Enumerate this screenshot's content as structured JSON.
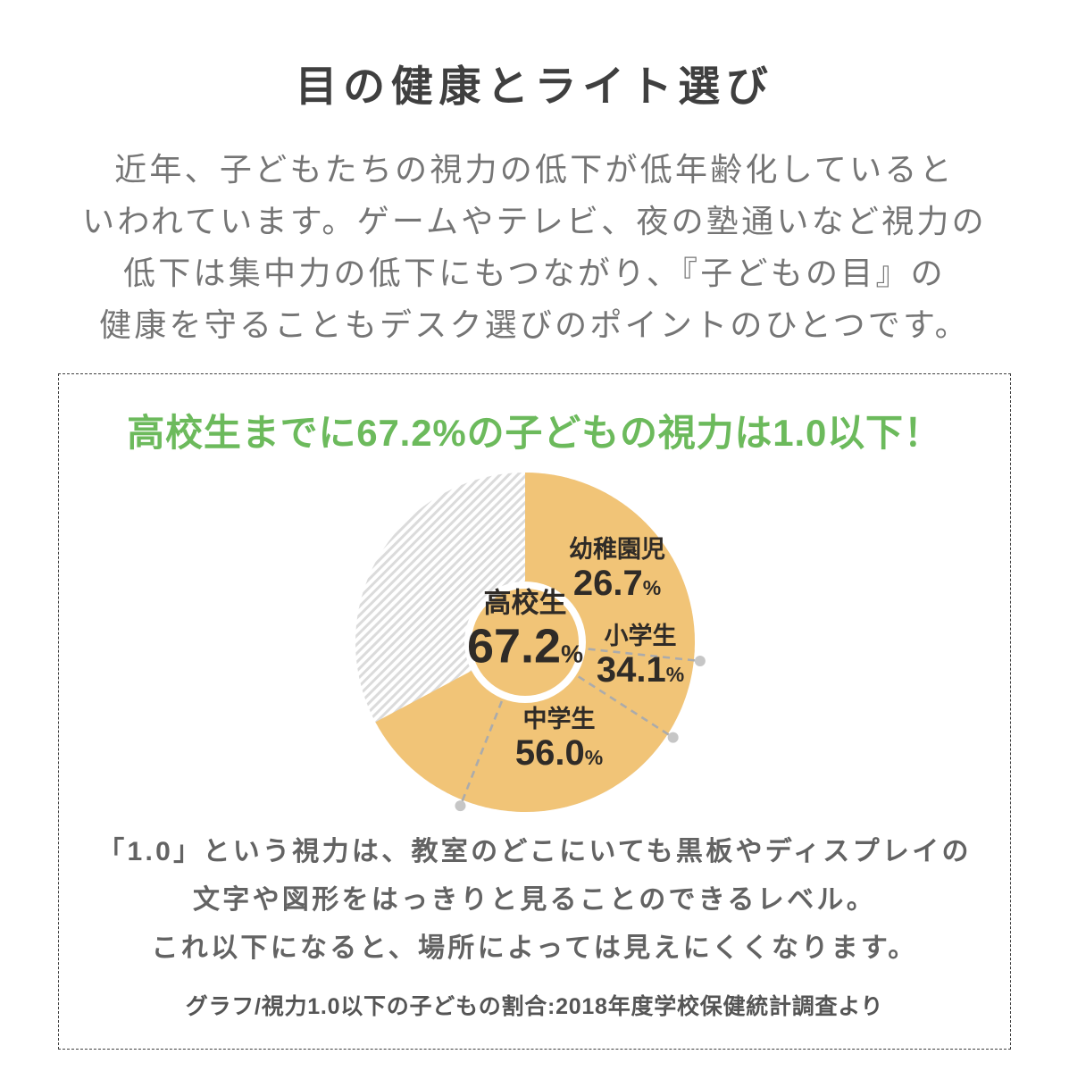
{
  "header": {
    "title": "目の健康とライト選び"
  },
  "intro": {
    "lines": [
      "近年、子どもたちの視力の低下が低年齢化していると",
      "いわれています。ゲームやテレビ、夜の塾通いなど視力の",
      "低下は集中力の低下にもつながり、『子どもの目』の",
      "健康を守ることもデスク選びのポイントのひとつです。"
    ]
  },
  "info_box": {
    "explanation_lines": [
      "「1.0」という視力は、教室のどこにいても黒板やディスプレイの",
      "文字や図形をはっきりと見ることのできるレベル。",
      "これ以下になると、場所によっては見えにくくなります。"
    ]
  },
  "chart_data": {
    "type": "pie",
    "title": "高校生までに67.2%の子どもの視力は1.0以下！",
    "categories": [
      "幼稚園児",
      "小学生",
      "中学生",
      "高校生"
    ],
    "values": [
      26.7,
      34.1,
      56.0,
      67.2
    ],
    "display_values": [
      "26.7",
      "34.1",
      "56.0",
      "67.2"
    ],
    "unit": "%",
    "center_category_index": 3,
    "filled_percent": 67.2,
    "remainder_percent": 32.8,
    "remainder_style": "diagonal-hatch",
    "start_angle_deg": 0,
    "direction": "clockwise",
    "legend_position": "labels-on-slices",
    "divider_percents": [
      26.7,
      34.1,
      56.0
    ],
    "source": "グラフ/視力1.0以下の子どもの割合:2018年度学校保健統計調査より"
  },
  "colors": {
    "accent_green": "#6CBA5C",
    "pie_fill": "#F1C477",
    "hatch_line": "#DBDBDB",
    "divider_line": "#ABABAB",
    "marker_dot": "#C6C6C6",
    "chart_text": "#2F2B27",
    "title_text": "#3F3F3F",
    "body_text": "#757575",
    "note_text": "#636363"
  }
}
